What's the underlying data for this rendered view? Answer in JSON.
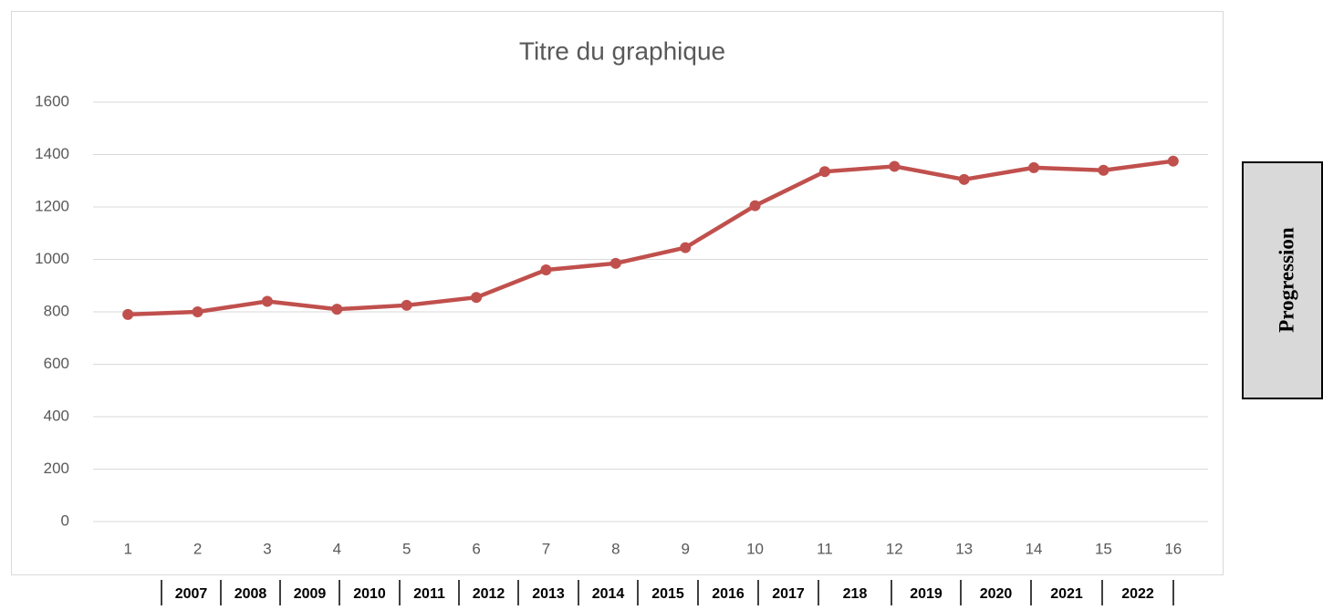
{
  "chart_data": {
    "type": "line",
    "title": "Titre du graphique",
    "categories": [
      "1",
      "2",
      "3",
      "4",
      "5",
      "6",
      "7",
      "8",
      "9",
      "10",
      "11",
      "12",
      "13",
      "14",
      "15",
      "16"
    ],
    "series": [
      {
        "name": null,
        "color": "#c0504d",
        "values": [
          790,
          800,
          840,
          810,
          825,
          855,
          960,
          985,
          1045,
          1205,
          1335,
          1355,
          1305,
          1350,
          1340,
          1375
        ]
      }
    ],
    "ylim": [
      0,
      1600
    ],
    "yticks": [
      0,
      200,
      400,
      600,
      800,
      1000,
      1200,
      1400,
      1600
    ],
    "grid": true
  },
  "year_table": [
    "2007",
    "2008",
    "2009",
    "2010",
    "2011",
    "2012",
    "2013",
    "2014",
    "2015",
    "2016",
    "2017",
    "218",
    "2019",
    "2020",
    "2021",
    "2022"
  ],
  "side_label": "Progression"
}
